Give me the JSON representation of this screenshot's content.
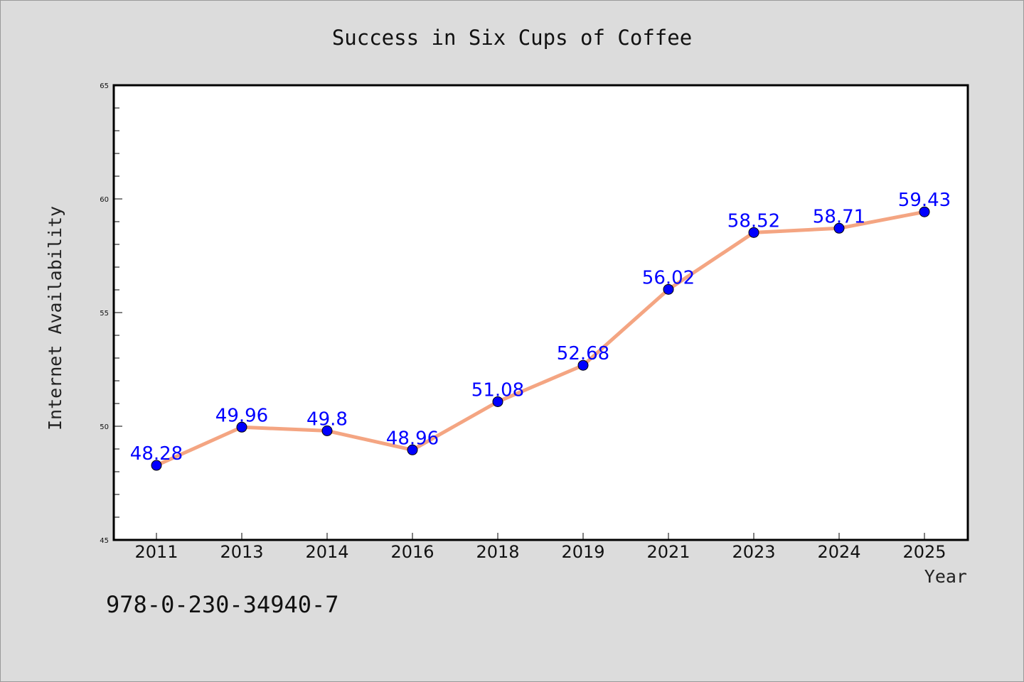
{
  "chart_data": {
    "type": "line",
    "title": "Success in Six Cups of Coffee",
    "xlabel": "Year",
    "ylabel": "Internet Availability",
    "categories": [
      "2011",
      "2013",
      "2014",
      "2016",
      "2018",
      "2019",
      "2021",
      "2023",
      "2024",
      "2025"
    ],
    "series": [
      {
        "values": [
          48.28,
          49.96,
          49.8,
          48.96,
          51.08,
          52.68,
          56.02,
          58.52,
          58.71,
          59.43
        ],
        "labels": [
          "48.28",
          "49.96",
          "49.8",
          "48.96",
          "51.08",
          "52.68",
          "56.02",
          "58.52",
          "58.71",
          "59.43"
        ],
        "line_color": "#f4a582",
        "marker_color": "#0000ff"
      }
    ],
    "ylim": [
      45,
      65
    ],
    "yticks": [
      "45",
      "50",
      "55",
      "60",
      "65"
    ],
    "grid": false,
    "legend": "none"
  },
  "annotation": "978-0-230-34940-7",
  "colors": {
    "background": "#dcdcdc",
    "plot_background": "#ffffff",
    "line": "#f4a582",
    "marker": "#0000ff",
    "data_label": "#0000ff"
  }
}
